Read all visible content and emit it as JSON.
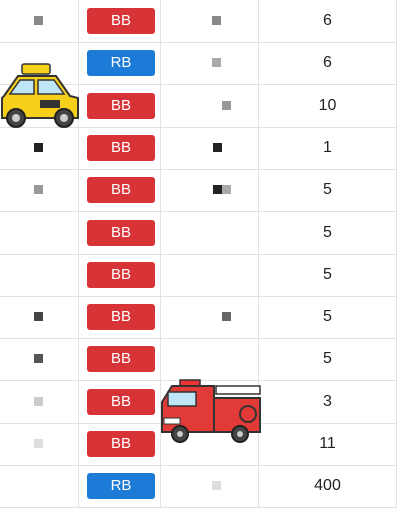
{
  "table": {
    "rows": [
      {
        "badge": "BB",
        "count": "6"
      },
      {
        "badge": "RB",
        "count": "6"
      },
      {
        "badge": "BB",
        "count": "10"
      },
      {
        "badge": "BB",
        "count": "1"
      },
      {
        "badge": "BB",
        "count": "5"
      },
      {
        "badge": "BB",
        "count": "5"
      },
      {
        "badge": "BB",
        "count": "5"
      },
      {
        "badge": "BB",
        "count": "5"
      },
      {
        "badge": "BB",
        "count": "5"
      },
      {
        "badge": "BB",
        "count": "3"
      },
      {
        "badge": "BB",
        "count": "11"
      },
      {
        "badge": "RB",
        "count": "400"
      }
    ]
  }
}
